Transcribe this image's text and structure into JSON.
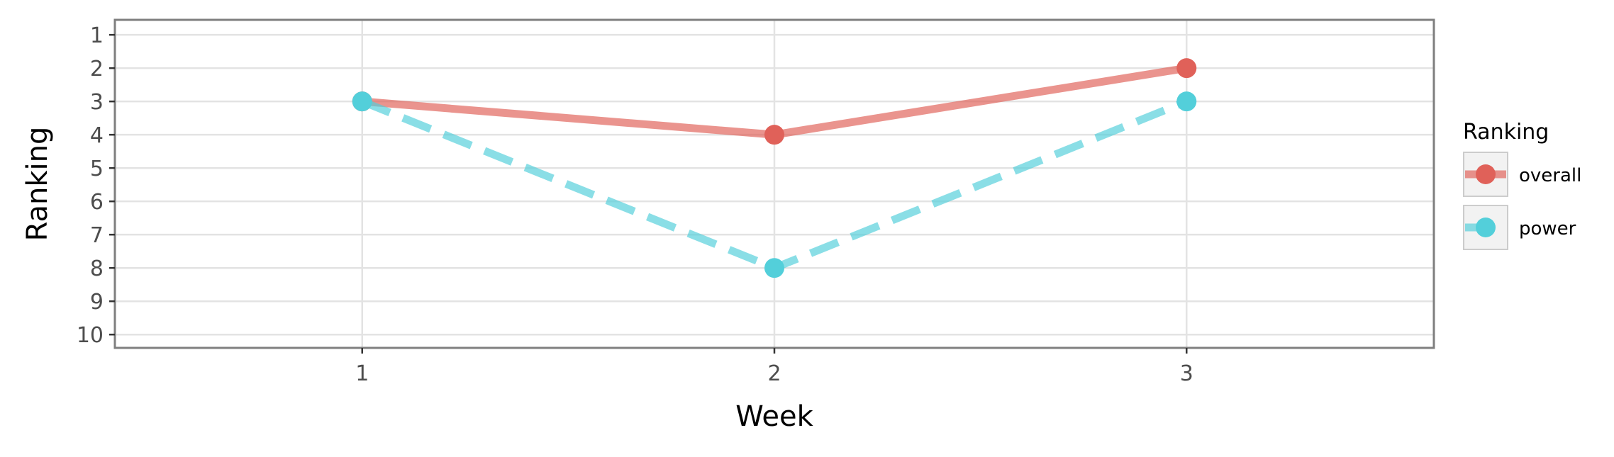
{
  "chart_data": {
    "type": "line",
    "title": "",
    "xlabel": "Week",
    "ylabel": "Ranking",
    "x": [
      1,
      2,
      3
    ],
    "x_ticks": [
      "1",
      "2",
      "3"
    ],
    "xlim": [
      0.4,
      3.6
    ],
    "y_ticks": [
      "1",
      "2",
      "3",
      "4",
      "5",
      "6",
      "7",
      "8",
      "9",
      "10"
    ],
    "ylim": [
      10.4,
      0.55
    ],
    "y_reversed": true,
    "grid": true,
    "legend": {
      "title": "Ranking",
      "placement": "right"
    },
    "series": [
      {
        "name": "overall",
        "values": [
          3,
          4,
          2
        ],
        "color": "#E06159",
        "line_style": "solid"
      },
      {
        "name": "power",
        "values": [
          3,
          8,
          3
        ],
        "color": "#53CFDA",
        "line_style": "dashed"
      }
    ]
  }
}
